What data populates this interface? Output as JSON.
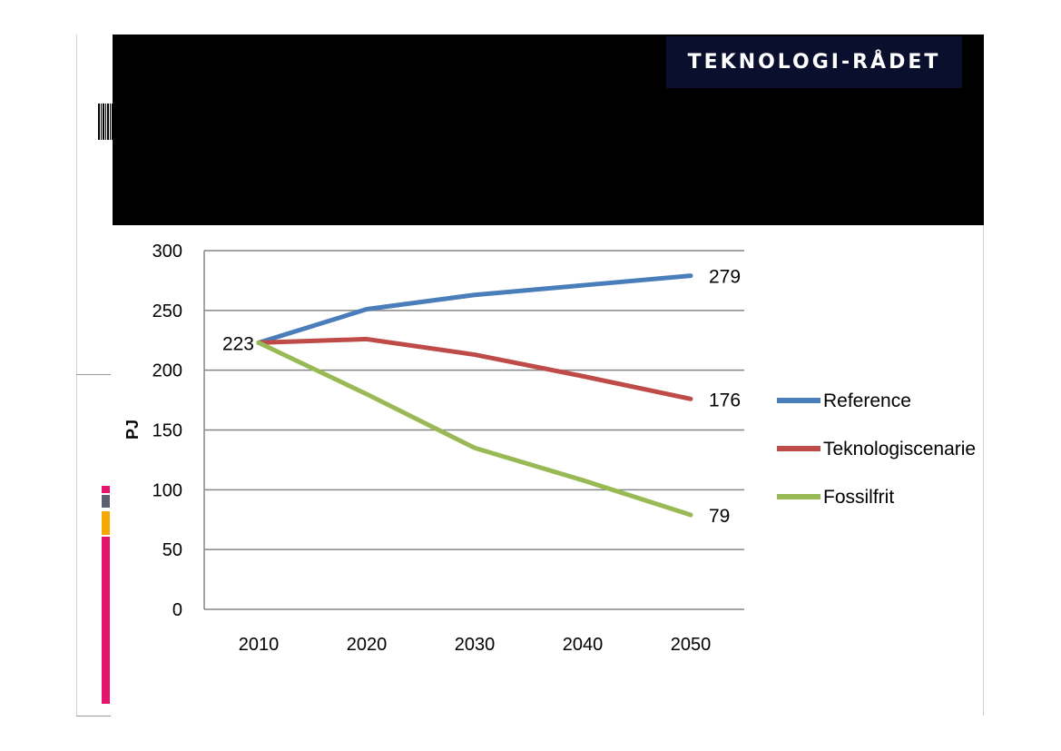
{
  "logo": {
    "text": "TEKNOLOGI-RÅDET"
  },
  "colors": {
    "reference": "#4a7ebb",
    "teknologiscenarie": "#be4b48",
    "fossilfrit": "#98b954",
    "accent_magenta": "#e5126e",
    "accent_gray": "#5a6070",
    "accent_orange": "#f6a800",
    "gridline": "#868686"
  },
  "chart_data": {
    "type": "line",
    "ylabel": "PJ",
    "xlabel": "",
    "ylim": [
      0,
      300
    ],
    "yticks": [
      "0",
      "50",
      "100",
      "150",
      "200",
      "250",
      "300"
    ],
    "x": [
      "2010",
      "2020",
      "2030",
      "2040",
      "2050"
    ],
    "grid": true,
    "legend_placement": "right",
    "series": [
      {
        "name": "Reference",
        "values": [
          223,
          251,
          263,
          271,
          279
        ]
      },
      {
        "name": "Teknologiscenarie",
        "values": [
          223,
          226,
          213,
          195,
          176
        ]
      },
      {
        "name": "Fossilfrit",
        "values": [
          223,
          180,
          135,
          108,
          79
        ]
      }
    ],
    "annotations": [
      {
        "text": "223",
        "series": 0,
        "point": 0
      },
      {
        "text": "279",
        "series": 0,
        "point": 4
      },
      {
        "text": "176",
        "series": 1,
        "point": 4
      },
      {
        "text": "79",
        "series": 2,
        "point": 4
      }
    ]
  }
}
